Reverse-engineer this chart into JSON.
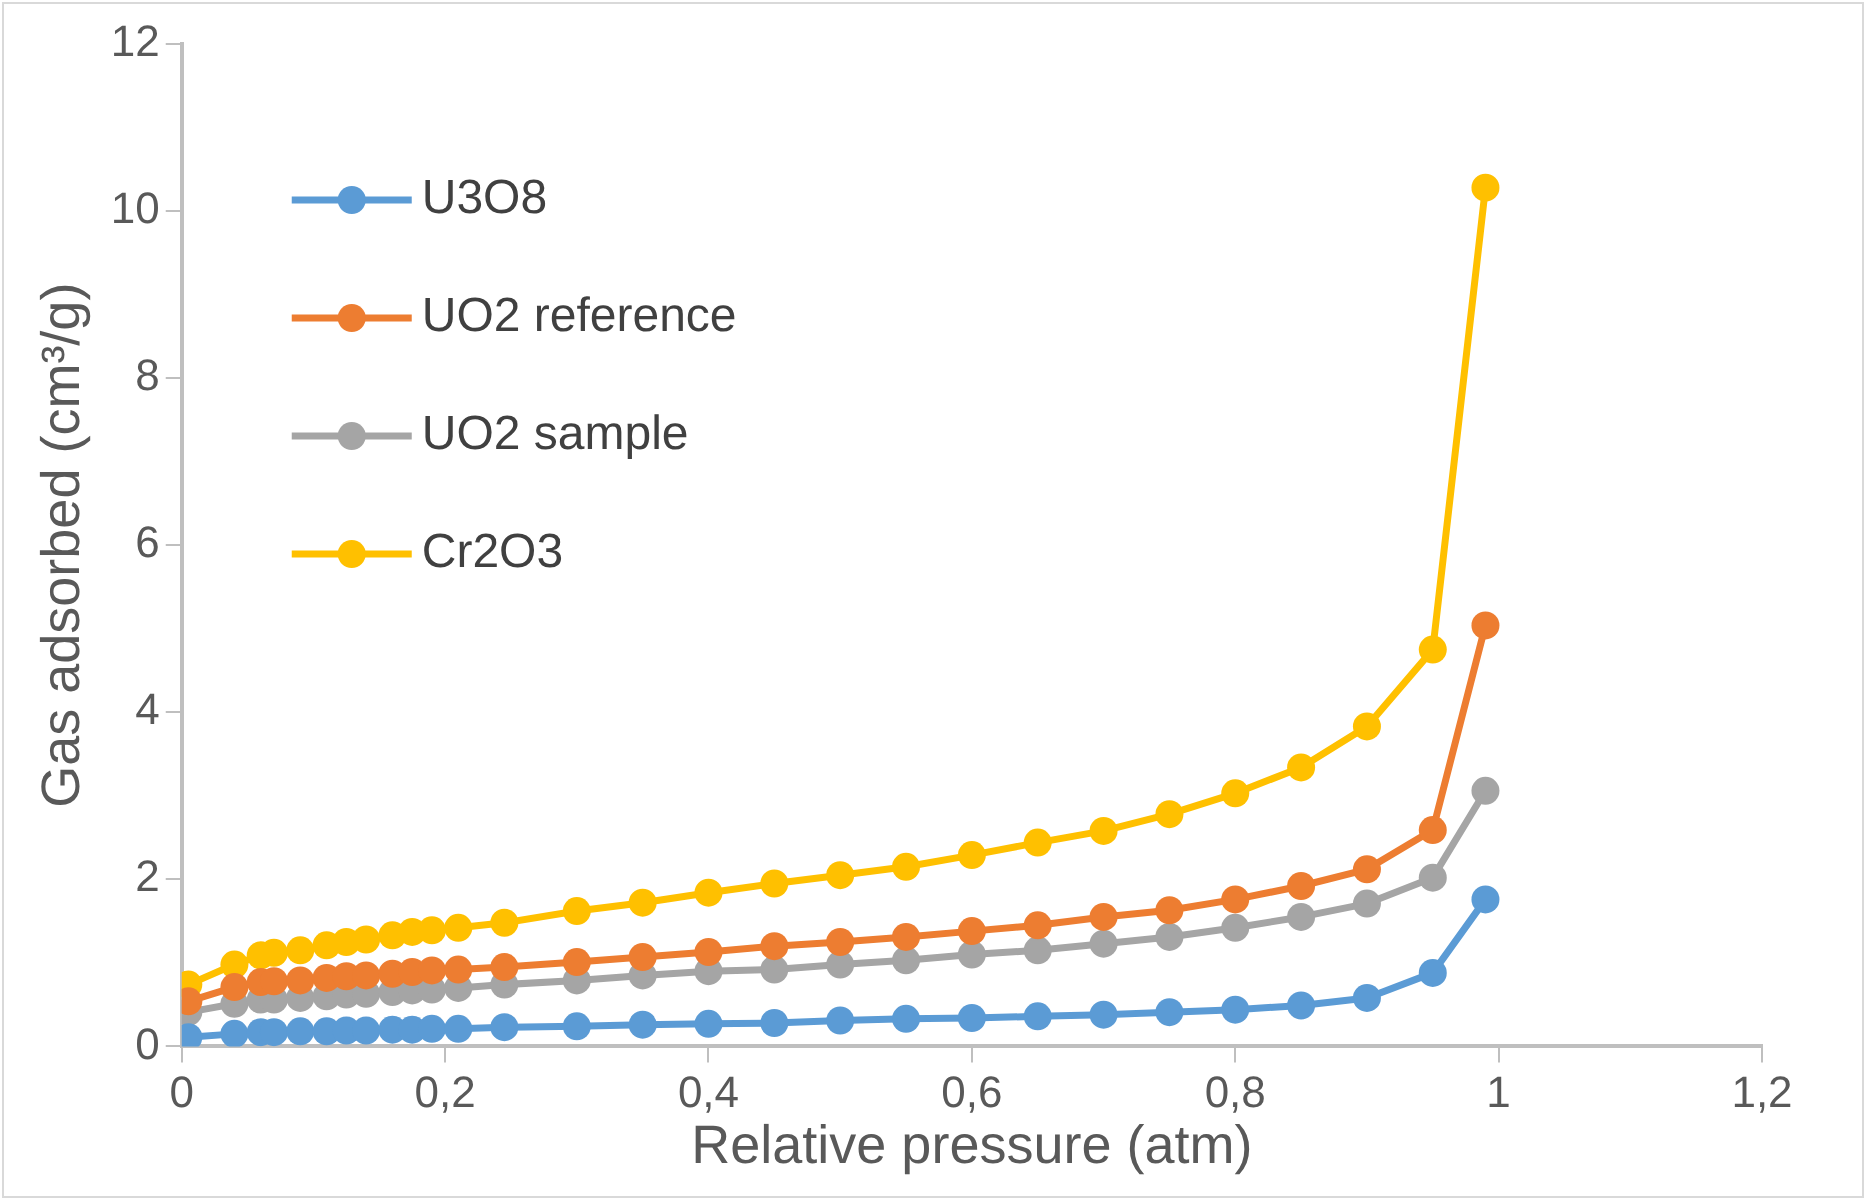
{
  "chart_data": {
    "type": "line",
    "xlabel": "Relative pressure (atm)",
    "ylabel": "Gas adsorbed (cm³/g)",
    "x": [
      0.005,
      0.04,
      0.06,
      0.07,
      0.09,
      0.11,
      0.125,
      0.14,
      0.16,
      0.175,
      0.19,
      0.21,
      0.245,
      0.3,
      0.35,
      0.4,
      0.45,
      0.5,
      0.55,
      0.6,
      0.65,
      0.7,
      0.75,
      0.8,
      0.85,
      0.9,
      0.95,
      0.99
    ],
    "series": [
      {
        "name": "U3O8",
        "color": "#5b9bd5",
        "values": [
          0.11,
          0.15,
          0.17,
          0.17,
          0.18,
          0.18,
          0.19,
          0.19,
          0.2,
          0.2,
          0.21,
          0.21,
          0.23,
          0.24,
          0.26,
          0.27,
          0.28,
          0.31,
          0.33,
          0.34,
          0.36,
          0.38,
          0.41,
          0.44,
          0.49,
          0.58,
          0.88,
          1.76
        ]
      },
      {
        "name": "UO2 reference",
        "color": "#ed7d31",
        "values": [
          0.54,
          0.71,
          0.77,
          0.78,
          0.79,
          0.82,
          0.84,
          0.85,
          0.87,
          0.89,
          0.91,
          0.92,
          0.95,
          1.01,
          1.07,
          1.13,
          1.2,
          1.25,
          1.31,
          1.38,
          1.45,
          1.55,
          1.63,
          1.76,
          1.92,
          2.12,
          2.59,
          5.04
        ]
      },
      {
        "name": "UO2 sample",
        "color": "#a5a5a5",
        "values": [
          0.41,
          0.51,
          0.56,
          0.56,
          0.58,
          0.6,
          0.62,
          0.63,
          0.65,
          0.67,
          0.68,
          0.7,
          0.74,
          0.79,
          0.85,
          0.9,
          0.92,
          0.98,
          1.03,
          1.1,
          1.15,
          1.23,
          1.31,
          1.42,
          1.55,
          1.71,
          2.02,
          3.06
        ]
      },
      {
        "name": "Cr2O3",
        "color": "#ffc000",
        "values": [
          0.74,
          0.98,
          1.09,
          1.12,
          1.15,
          1.21,
          1.25,
          1.28,
          1.33,
          1.37,
          1.39,
          1.42,
          1.48,
          1.62,
          1.72,
          1.84,
          1.95,
          2.05,
          2.15,
          2.29,
          2.44,
          2.58,
          2.78,
          3.03,
          3.34,
          3.83,
          4.75,
          10.28
        ]
      }
    ],
    "xlim": [
      0,
      1.2
    ],
    "xticks": [
      0,
      {
        "value": 0.2,
        "label": "0,2"
      },
      {
        "value": 0.4,
        "label": "0,4"
      },
      {
        "value": 0.6,
        "label": "0,6"
      },
      {
        "value": 0.8,
        "label": "0,8"
      },
      1,
      {
        "value": 1.2,
        "label": "1,2"
      }
    ],
    "ylim": [
      0,
      12
    ],
    "yticks": [
      0,
      2,
      4,
      6,
      8,
      10,
      12
    ],
    "grid": false,
    "legend": "top left",
    "marker": "circle",
    "line_style": "solid"
  }
}
